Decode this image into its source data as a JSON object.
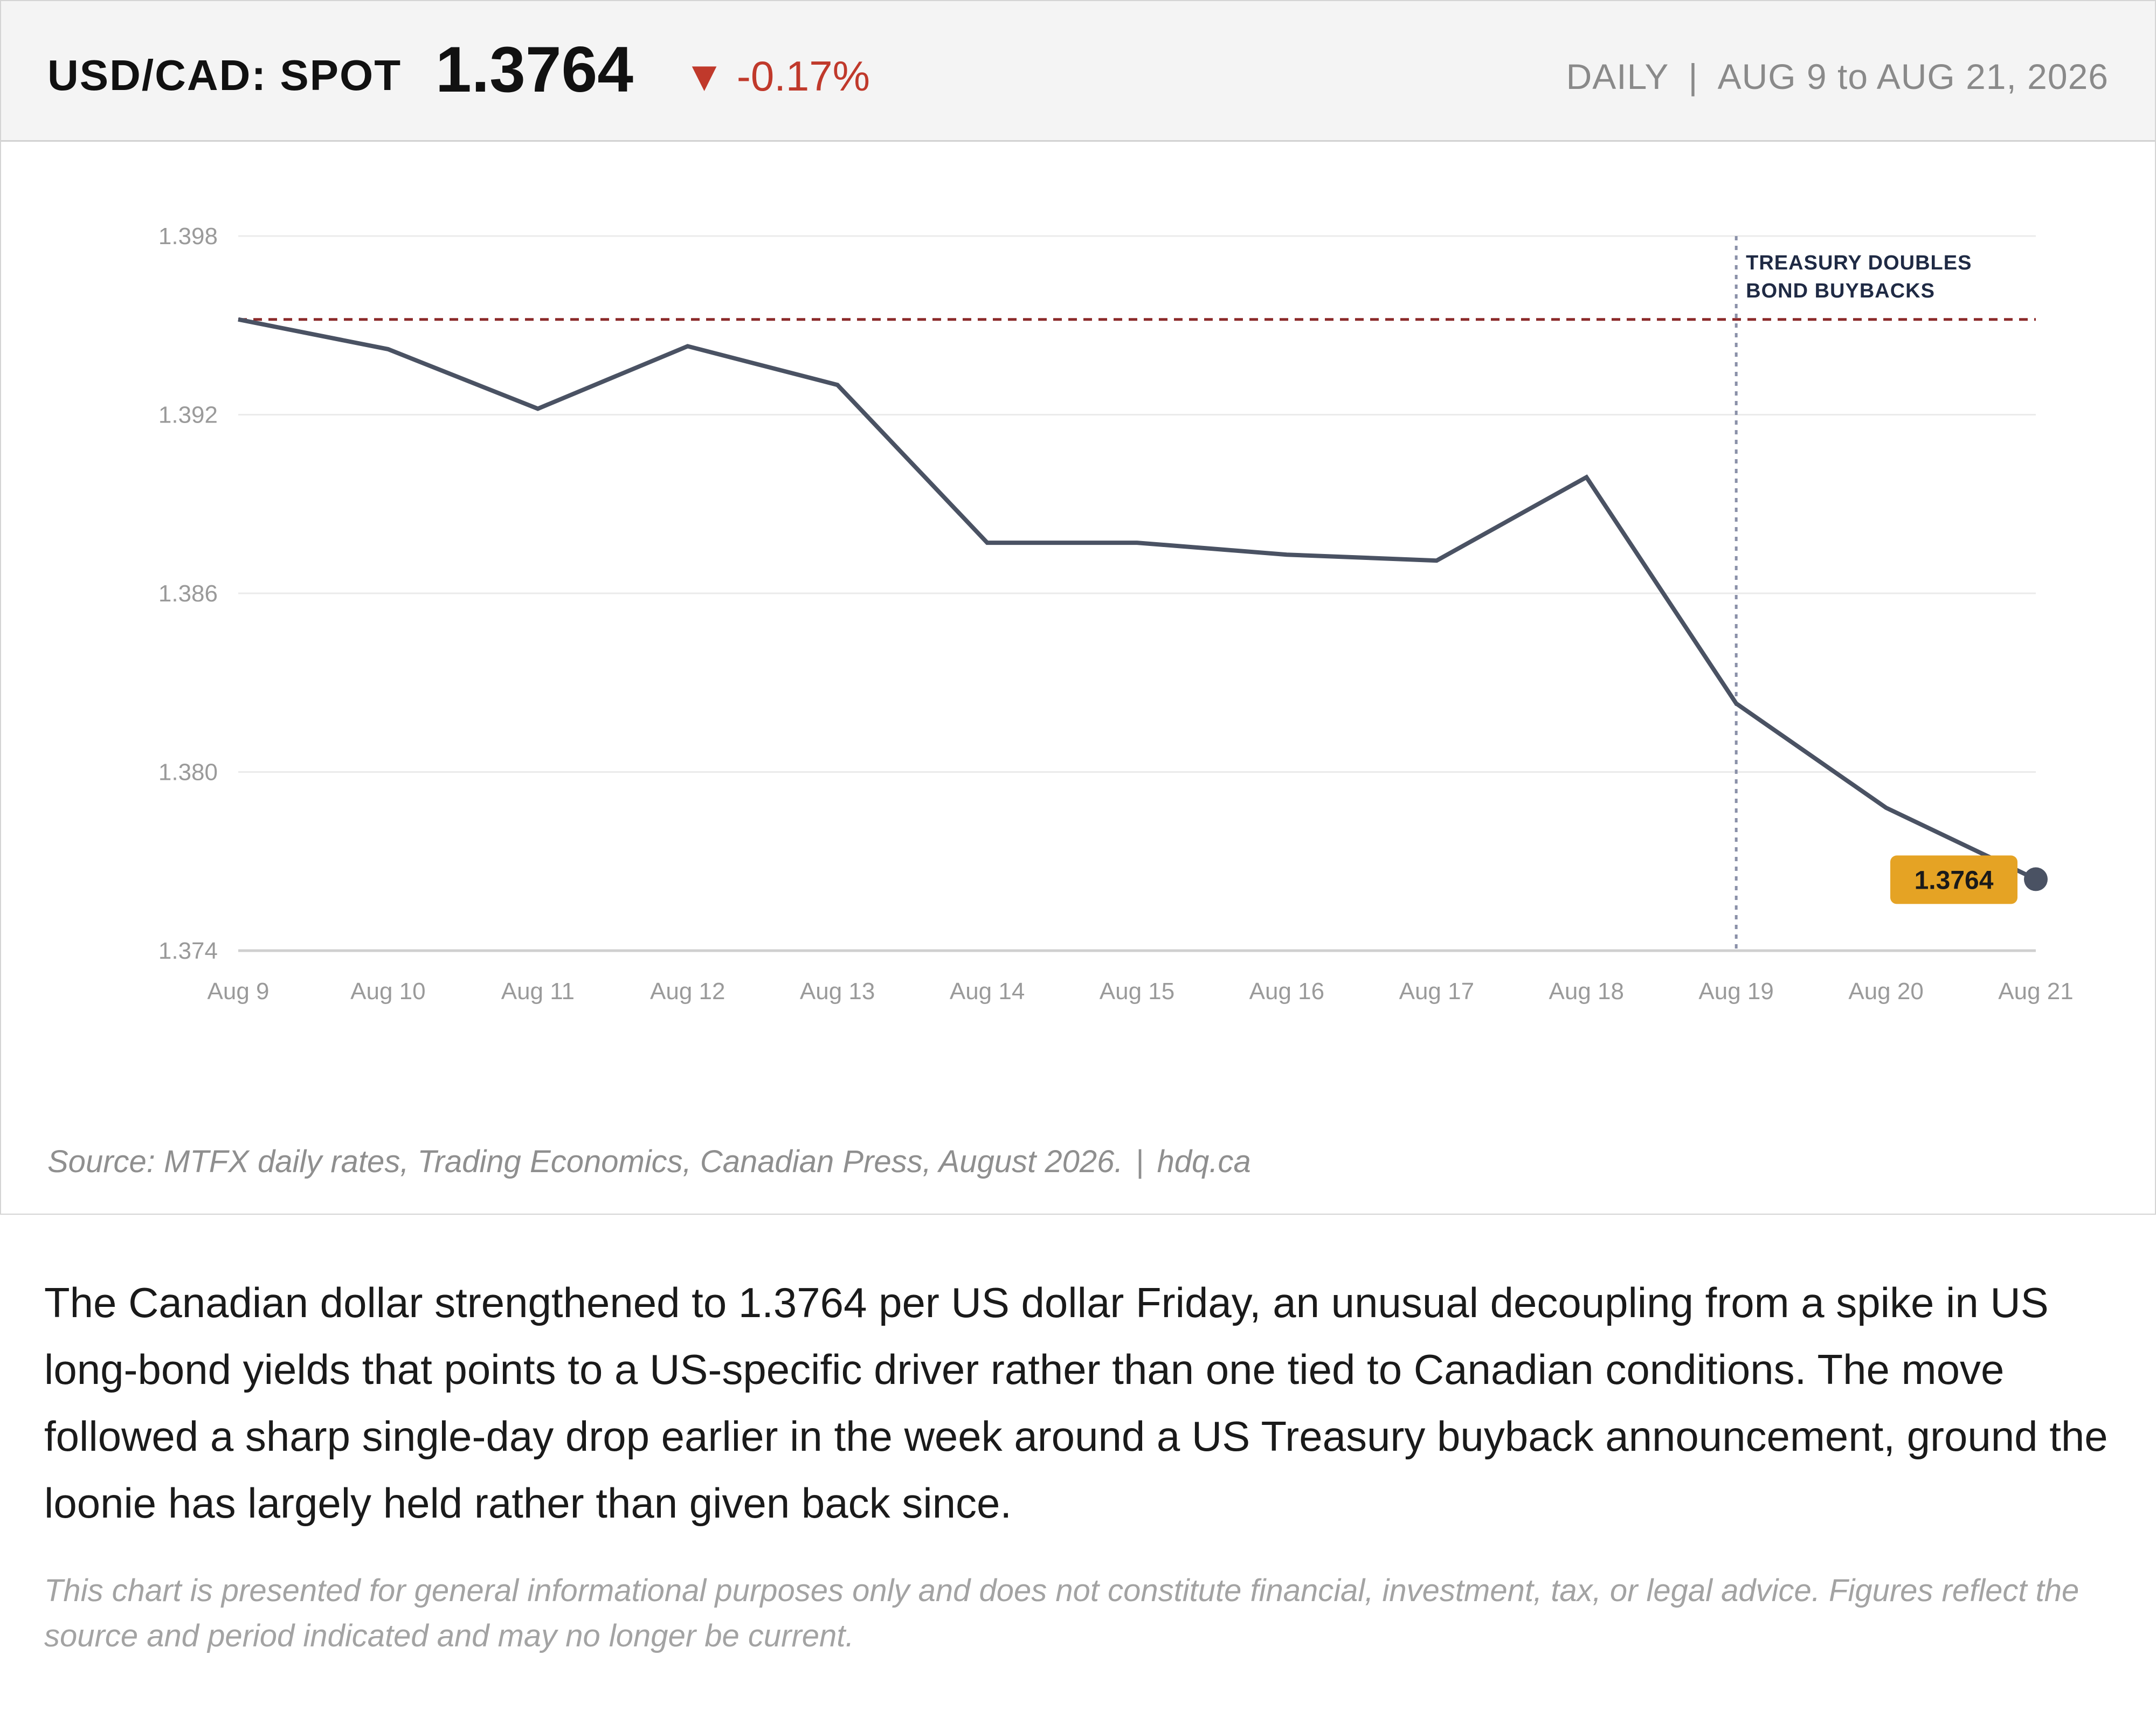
{
  "header": {
    "pair": "USD/CAD: SPOT",
    "spot": "1.3764",
    "change_arrow": "▼",
    "change": "-0.17%",
    "frequency": "DAILY",
    "separator": "|",
    "range": "AUG 9 to AUG 21, 2026"
  },
  "colors": {
    "line": "#4a5263",
    "reference": "#8b2a2a",
    "event": "#8a90a8",
    "badge": "#e5a324",
    "negative": "#c0392b"
  },
  "chart_data": {
    "type": "line",
    "categories": [
      "Aug 9",
      "Aug 10",
      "Aug 11",
      "Aug 12",
      "Aug 13",
      "Aug 14",
      "Aug 15",
      "Aug 16",
      "Aug 17",
      "Aug 18",
      "Aug 19",
      "Aug 20",
      "Aug 21"
    ],
    "series": [
      {
        "values": [
          1.3952,
          1.3942,
          1.3922,
          1.3943,
          1.393,
          1.3877,
          1.3877,
          1.3873,
          1.3871,
          1.3899,
          1.3823,
          1.3788,
          1.3764
        ]
      }
    ],
    "y_ticks": [
      "1.398",
      "1.392",
      "1.386",
      "1.380",
      "1.374"
    ],
    "ylim": [
      1.374,
      1.398
    ],
    "reference_line": {
      "value": 1.3952,
      "style": "dashed"
    },
    "event": {
      "x": "Aug 19",
      "label_lines": [
        "TREASURY DOUBLES",
        "BOND BUYBACKS"
      ]
    },
    "last_value_label": "1.3764",
    "grid": true,
    "title": "",
    "xlabel": "",
    "ylabel": ""
  },
  "footer": {
    "source": "Source: MTFX daily rates, Trading Economics, Canadian Press, August 2026.",
    "separator": "|",
    "site": "hdq.ca"
  },
  "body_text": "The Canadian dollar strengthened to 1.3764 per US dollar Friday, an unusual decoupling from a spike in US long-bond yields that points to a US-specific driver rather than one tied to Canadian conditions. The move followed a sharp single-day drop earlier in the week around a US Treasury buyback announcement, ground the loonie has largely held rather than given back since.",
  "disclaimer": "This chart is presented for general informational purposes only and does not constitute financial, investment, tax, or legal advice. Figures reflect the source and period indicated and may no longer be current."
}
